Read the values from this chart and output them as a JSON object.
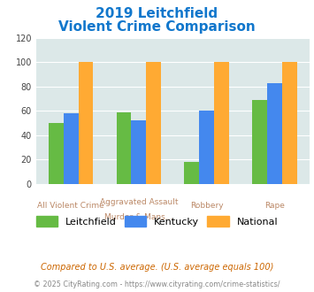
{
  "title_line1": "2019 Leitchfield",
  "title_line2": "Violent Crime Comparison",
  "leitchfield": [
    50,
    59,
    18,
    69
  ],
  "kentucky": [
    58,
    52,
    60,
    83
  ],
  "national": [
    100,
    100,
    100,
    100
  ],
  "bar_colors": {
    "leitchfield": "#66bb44",
    "kentucky": "#4488ee",
    "national": "#ffaa33"
  },
  "ylim": [
    0,
    120
  ],
  "yticks": [
    0,
    20,
    40,
    60,
    80,
    100,
    120
  ],
  "legend_labels": [
    "Leitchfield",
    "Kentucky",
    "National"
  ],
  "x_labels_line1": [
    "All Violent Crime",
    "Aggravated Assault",
    "Robbery",
    "Rape"
  ],
  "x_labels_line2": [
    "",
    "Murder & Mans...",
    "",
    ""
  ],
  "footnote1": "Compared to U.S. average. (U.S. average equals 100)",
  "footnote2": "© 2025 CityRating.com - https://www.cityrating.com/crime-statistics/",
  "bg_color": "#dce8e8",
  "title_color": "#1177cc",
  "footnote1_color": "#cc6600",
  "footnote2_color": "#888888",
  "x_label_color": "#bb8866"
}
